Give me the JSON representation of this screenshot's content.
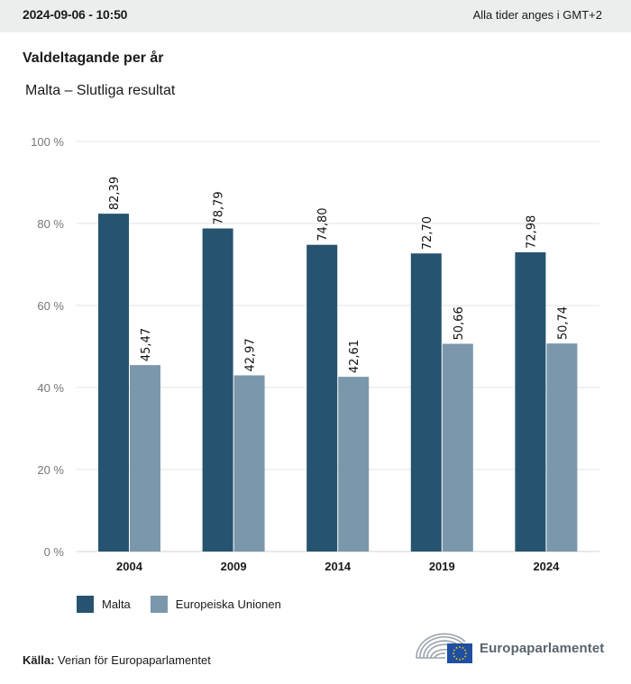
{
  "header": {
    "timestamp": "2024-09-06 - 10:50",
    "timezone_note": "Alla tider anges i GMT+2"
  },
  "title": "Valdeltagande per år",
  "subtitle": "Malta – Slutliga resultat",
  "colors": {
    "malta": "#26536f",
    "eu": "#7b97ab",
    "grid": "#e2e4e6",
    "axis_text": "#777777"
  },
  "chart_data": {
    "type": "bar",
    "title": "Valdeltagande per år",
    "subtitle": "Malta – Slutliga resultat",
    "xlabel": "",
    "ylabel": "",
    "ylim": [
      0,
      100
    ],
    "y_ticks": [
      0,
      20,
      40,
      60,
      80,
      100
    ],
    "y_tick_labels": [
      "0 %",
      "20 %",
      "40 %",
      "60 %",
      "80 %",
      "100 %"
    ],
    "grid": true,
    "legend_position": "bottom-left",
    "categories": [
      "2004",
      "2009",
      "2014",
      "2019",
      "2024"
    ],
    "series": [
      {
        "name": "Malta",
        "color": "#26536f",
        "values": [
          82.39,
          78.79,
          74.8,
          72.7,
          72.98
        ],
        "labels": [
          "82,39",
          "78,79",
          "74,80",
          "72,70",
          "72,98"
        ]
      },
      {
        "name": "Europeiska Unionen",
        "color": "#7b97ab",
        "values": [
          45.47,
          42.97,
          42.61,
          50.66,
          50.74
        ],
        "labels": [
          "45,47",
          "42,97",
          "42,61",
          "50,66",
          "50,74"
        ]
      }
    ]
  },
  "legend": {
    "items": [
      {
        "label": "Malta"
      },
      {
        "label": "Europeiska Unionen"
      }
    ]
  },
  "footer": {
    "source_label": "Källa:",
    "source_text": "Verian för Europaparlamentet",
    "logo_text": "Europaparlamentet"
  }
}
